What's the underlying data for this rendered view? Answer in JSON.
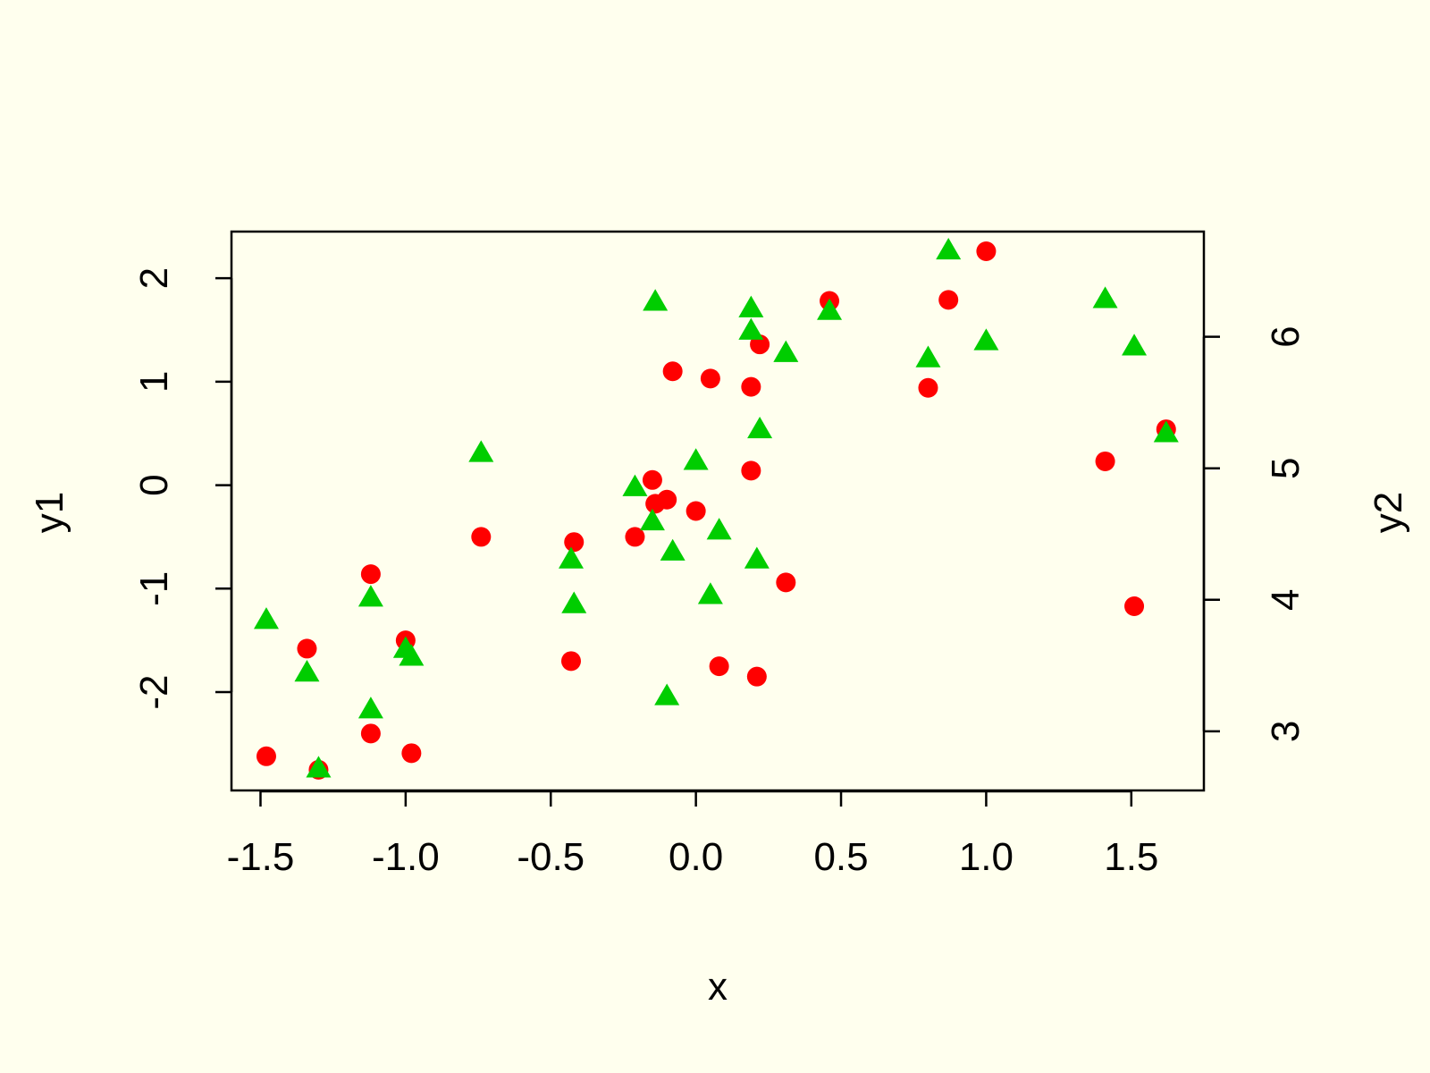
{
  "chart_data": {
    "type": "scatter",
    "title": "",
    "xlabel": "x",
    "ylabel_left": "y1",
    "ylabel_right": "y2",
    "xlim": [
      -1.6,
      1.75
    ],
    "ylim_left": [
      -2.95,
      2.45
    ],
    "ylim_right": [
      2.55,
      6.8
    ],
    "x_ticks": [
      -1.5,
      -1.0,
      -0.5,
      0.0,
      0.5,
      1.0,
      1.5
    ],
    "x_tick_labels": [
      "-1.5",
      "-1.0",
      "-0.5",
      "0.0",
      "0.5",
      "1.0",
      "1.5"
    ],
    "y_left_ticks": [
      -2,
      -1,
      0,
      1,
      2
    ],
    "y_left_tick_labels": [
      "-2",
      "-1",
      "0",
      "1",
      "2"
    ],
    "y_right_ticks": [
      3,
      4,
      5,
      6
    ],
    "y_right_tick_labels": [
      "3",
      "4",
      "5",
      "6"
    ],
    "grid": false,
    "background": "#FFFFEE",
    "series": [
      {
        "axis": "left",
        "marker": "circle",
        "color": "#FF0000",
        "x": [
          -1.48,
          -1.34,
          -1.3,
          -1.12,
          -1.12,
          -1.0,
          -0.98,
          -0.74,
          -0.43,
          -0.42,
          -0.21,
          -0.15,
          -0.14,
          -0.1,
          -0.08,
          0.0,
          0.05,
          0.08,
          0.19,
          0.19,
          0.21,
          0.22,
          0.31,
          0.46,
          0.8,
          0.87,
          1.0,
          1.41,
          1.51,
          1.62
        ],
        "y": [
          -2.62,
          -1.58,
          -2.75,
          -0.86,
          -2.4,
          -1.5,
          -2.59,
          -0.5,
          -1.7,
          -0.55,
          -0.5,
          0.05,
          -0.18,
          -0.14,
          1.1,
          -0.25,
          1.03,
          -1.75,
          0.95,
          0.14,
          -1.85,
          1.36,
          -0.94,
          1.78,
          0.94,
          1.79,
          2.26,
          0.23,
          -1.17,
          0.54
        ]
      },
      {
        "axis": "right",
        "marker": "triangle",
        "color": "#00CD00",
        "x": [
          -1.48,
          -1.34,
          -1.3,
          -1.12,
          -1.12,
          -1.0,
          -0.98,
          -0.74,
          -0.43,
          -0.42,
          -0.21,
          -0.15,
          -0.14,
          -0.1,
          -0.08,
          0.0,
          0.05,
          0.08,
          0.19,
          0.19,
          0.21,
          0.22,
          0.31,
          0.46,
          0.8,
          0.87,
          1.0,
          1.41,
          1.51,
          1.62
        ],
        "y": [
          3.85,
          3.45,
          2.72,
          4.02,
          3.17,
          3.63,
          3.57,
          5.12,
          4.31,
          3.97,
          4.86,
          4.6,
          6.27,
          3.27,
          4.37,
          5.06,
          4.04,
          4.53,
          6.22,
          6.05,
          4.31,
          5.3,
          5.88,
          6.2,
          5.84,
          6.66,
          5.97,
          6.29,
          5.93,
          5.27
        ]
      }
    ]
  }
}
